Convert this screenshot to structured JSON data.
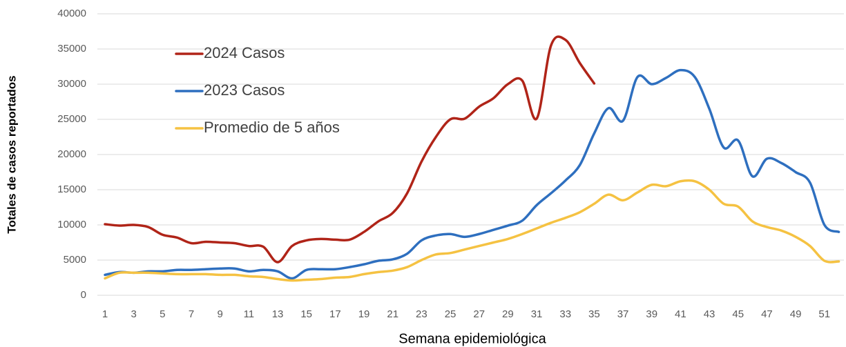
{
  "chart_data": {
    "type": "line",
    "x_label": "Semana epidemiológica",
    "y_label": "Totales de casos reportados",
    "categories": [
      "1",
      null,
      "3",
      null,
      "5",
      null,
      "7",
      null,
      "9",
      null,
      "11",
      null,
      "13",
      null,
      "15",
      null,
      "17",
      null,
      "19",
      null,
      "21",
      null,
      "23",
      null,
      "25",
      null,
      "27",
      null,
      "29",
      null,
      "31",
      null,
      "33",
      null,
      "35",
      null,
      "37",
      null,
      "39",
      null,
      "41",
      null,
      "43",
      null,
      "45",
      null,
      "47",
      null,
      "49",
      null,
      "51",
      null
    ],
    "series": [
      {
        "name": "2024 Casos",
        "color": "#b02418",
        "values": [
          10100,
          9900,
          10000,
          9700,
          8600,
          8200,
          7400,
          7600,
          7500,
          7400,
          7000,
          6900,
          4700,
          7000,
          7800,
          8000,
          7900,
          7900,
          9000,
          10500,
          11700,
          14500,
          19000,
          22500,
          25000,
          25100,
          26800,
          28000,
          30000,
          30500,
          25100,
          35500,
          36300,
          33000,
          30100,
          null,
          null,
          null,
          null,
          null,
          null,
          null,
          null,
          null,
          null,
          null,
          null,
          null,
          null,
          null,
          null,
          null
        ]
      },
      {
        "name": "2023 Casos",
        "color": "#2e6fbf",
        "values": [
          2900,
          3300,
          3200,
          3400,
          3400,
          3600,
          3600,
          3700,
          3800,
          3800,
          3400,
          3600,
          3400,
          2400,
          3600,
          3700,
          3700,
          4000,
          4400,
          4900,
          5100,
          5900,
          7800,
          8500,
          8700,
          8300,
          8700,
          9300,
          9900,
          10600,
          12800,
          14500,
          16300,
          18500,
          23000,
          26600,
          24800,
          31000,
          30000,
          30900,
          32000,
          31000,
          26500,
          21000,
          22000,
          16900,
          19400,
          18800,
          17500,
          16000,
          10000,
          9000
        ]
      },
      {
        "name": "Promedio de 5 años",
        "color": "#f5c242",
        "values": [
          2400,
          3200,
          3200,
          3200,
          3100,
          3000,
          3000,
          3000,
          2900,
          2900,
          2700,
          2600,
          2300,
          2100,
          2200,
          2300,
          2500,
          2600,
          3000,
          3300,
          3500,
          4000,
          5000,
          5800,
          6000,
          6500,
          7000,
          7500,
          8000,
          8700,
          9500,
          10300,
          11000,
          11800,
          13000,
          14300,
          13500,
          14600,
          15700,
          15500,
          16200,
          16200,
          15000,
          13000,
          12600,
          10500,
          9700,
          9200,
          8300,
          7000,
          4900,
          4800
        ]
      }
    ],
    "ylim": [
      0,
      40000
    ],
    "yticks": [
      0,
      5000,
      10000,
      15000,
      20000,
      25000,
      30000,
      35000,
      40000
    ],
    "grid": true,
    "legend": "upper left"
  }
}
